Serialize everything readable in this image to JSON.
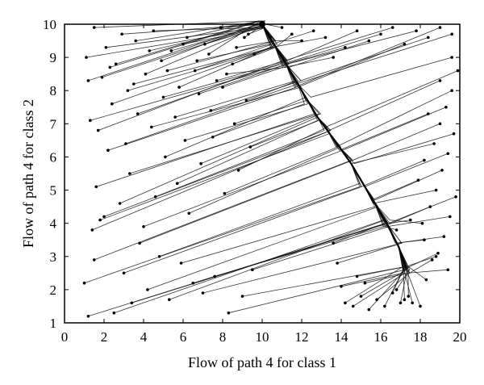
{
  "chart_data": {
    "type": "line",
    "title": "",
    "xlabel": "Flow of path 4 for class 1",
    "ylabel": "Flow of path 4 for class 2",
    "xlim": [
      0,
      20
    ],
    "ylim": [
      1,
      10
    ],
    "xticks": [
      "0",
      "2",
      "4",
      "6",
      "8",
      "10",
      "12",
      "14",
      "16",
      "18",
      "20"
    ],
    "yticks": [
      "1",
      "2",
      "3",
      "4",
      "5",
      "6",
      "7",
      "8",
      "9",
      "10"
    ],
    "grid": false,
    "legend": "none",
    "description_of_marks": "Many trajectories from scattered start points (dots) converging along a curve from (10,10) down to about (17,2.5)",
    "attractor_curve": {
      "x": [
        10.0,
        10.6,
        11.2,
        11.8,
        12.3,
        12.8,
        13.3,
        13.9,
        14.5,
        15.1,
        15.7,
        16.3,
        16.9,
        17.3
      ],
      "y": [
        10.0,
        9.4,
        8.8,
        8.2,
        7.7,
        7.2,
        6.8,
        6.3,
        5.8,
        5.2,
        4.6,
        4.0,
        3.3,
        2.6
      ]
    },
    "start_points": {
      "x": [
        1.0,
        1.2,
        1.5,
        1.8,
        2.0,
        2.5,
        3.0,
        3.4,
        3.8,
        4.2,
        4.8,
        5.3,
        5.9,
        6.5,
        7.0,
        7.6,
        8.3,
        9.0,
        9.5,
        1.4,
        1.6,
        2.2,
        2.8,
        3.3,
        4.0,
        4.6,
        5.1,
        5.7,
        6.3,
        6.9,
        7.5,
        8.1,
        8.8,
        9.4,
        1.3,
        1.7,
        2.4,
        3.1,
        3.7,
        4.4,
        5.0,
        5.6,
        6.1,
        6.8,
        7.4,
        8.0,
        8.6,
        9.2,
        1.1,
        1.9,
        2.6,
        3.5,
        4.3,
        5.2,
        6.0,
        6.7,
        7.3,
        8.2,
        9.1,
        1.5,
        2.1,
        2.9,
        3.6,
        4.5,
        5.4,
        6.2,
        7.1,
        7.9,
        8.7,
        9.3,
        1.2,
        2.3,
        3.2,
        4.1,
        4.9,
        5.8,
        6.6,
        7.7,
        8.5,
        9.6,
        14.2,
        14.6,
        15.0,
        15.4,
        15.8,
        16.2,
        16.6,
        17.0,
        17.4,
        13.8,
        14.0,
        13.6,
        14.8,
        15.2,
        16.8,
        17.2,
        17.6,
        18.0,
        18.3,
        18.6,
        18.9,
        19.2,
        19.5,
        19.8,
        18.1,
        18.5,
        18.8,
        19.1,
        19.4,
        19.7,
        17.9,
        18.2,
        18.7,
        19.0,
        19.3,
        19.6,
        19.9,
        18.4,
        19.0,
        19.6,
        13.2,
        12.6,
        12.0,
        11.5,
        11.0,
        10.4,
        13.6,
        14.2,
        14.8,
        15.4,
        16.0,
        16.6,
        17.2,
        17.8,
        18.4,
        19.0,
        19.6,
        18.8,
        19.4,
        17.5,
        18.2,
        16.8
      ],
      "y": [
        2.2,
        1.2,
        2.9,
        4.1,
        4.2,
        1.3,
        2.5,
        1.6,
        3.4,
        2.0,
        3.0,
        1.7,
        2.8,
        2.2,
        1.9,
        2.4,
        1.3,
        1.8,
        2.6,
        3.8,
        5.1,
        6.2,
        4.6,
        5.5,
        3.9,
        4.8,
        6.0,
        5.2,
        4.3,
        5.8,
        6.6,
        4.9,
        5.6,
        6.3,
        7.1,
        6.8,
        7.6,
        6.4,
        7.3,
        6.9,
        7.8,
        7.2,
        6.5,
        7.9,
        7.4,
        8.1,
        7.0,
        7.7,
        9.0,
        8.4,
        8.8,
        8.2,
        9.2,
        8.6,
        9.4,
        8.9,
        9.1,
        8.5,
        9.6,
        9.9,
        9.3,
        9.7,
        9.5,
        9.8,
        9.2,
        9.6,
        9.4,
        9.9,
        9.3,
        9.7,
        8.3,
        8.7,
        8.0,
        8.5,
        8.9,
        8.1,
        8.6,
        8.3,
        8.8,
        9.1,
        1.6,
        1.5,
        1.8,
        1.4,
        1.7,
        1.5,
        1.9,
        1.6,
        1.8,
        2.8,
        2.1,
        3.4,
        2.4,
        2.2,
        2.0,
        1.7,
        1.6,
        1.5,
        2.3,
        2.9,
        3.1,
        3.6,
        4.2,
        4.8,
        4.0,
        4.5,
        5.0,
        5.6,
        6.1,
        6.7,
        5.3,
        5.9,
        6.4,
        7.0,
        7.5,
        8.0,
        8.6,
        7.3,
        8.3,
        9.0,
        9.6,
        9.8,
        9.5,
        9.7,
        9.9,
        9.6,
        9.0,
        9.3,
        9.8,
        9.5,
        9.7,
        9.9,
        9.4,
        9.8,
        9.6,
        9.9,
        9.7,
        3.0,
        2.6,
        4.1,
        3.5,
        3.8
      ]
    }
  }
}
